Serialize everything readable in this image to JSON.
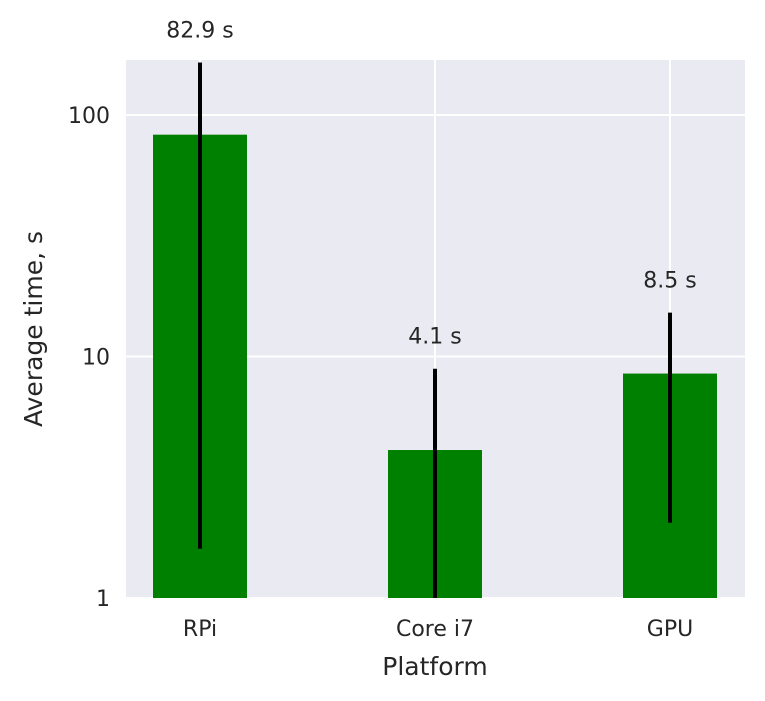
{
  "chart_data": {
    "type": "bar",
    "title": "",
    "xlabel": "Platform",
    "ylabel": "Average time, s",
    "yscale": "log",
    "ylim": [
      1,
      175
    ],
    "yticks": [
      {
        "value": 1,
        "label": "1"
      },
      {
        "value": 10,
        "label": "10"
      },
      {
        "value": 100,
        "label": "100"
      }
    ],
    "grid": true,
    "categories": [
      "RPi",
      "Core i7",
      "GPU"
    ],
    "values": [
      82.9,
      4.1,
      8.5
    ],
    "error_bars": [
      {
        "low": 1.6,
        "high": 165
      },
      {
        "low": 1.0,
        "high": 8.9
      },
      {
        "low": 2.05,
        "high": 15.2
      }
    ],
    "data_labels": [
      "82.9 s",
      "4.1 s",
      "8.5 s"
    ],
    "colors": {
      "bar": "#008000",
      "error_bar": "#000000",
      "plot_background": "#eaeaf2",
      "grid": "#ffffff",
      "text": "#262626"
    }
  }
}
